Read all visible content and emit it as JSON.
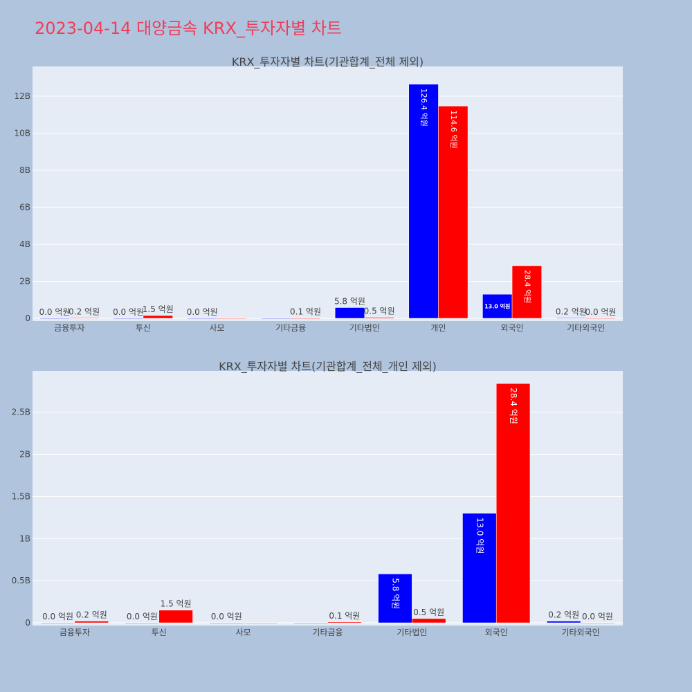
{
  "page": {
    "title": "2023-04-14 대양금속 KRX_투자자별 차트",
    "title_color": "#ef3d59",
    "background": "#b0c4de",
    "plot_background": "#e5ecf6",
    "grid_color": "#ffffff",
    "text_color": "#444444",
    "bar_colors": [
      "#0000ff",
      "#ff0000"
    ]
  },
  "chart_data": [
    {
      "type": "bar",
      "title": "KRX_투자자별 차트(기관합계_전체 제외)",
      "categories": [
        "금융투자",
        "투신",
        "사모",
        "기타금융",
        "기타법인",
        "개인",
        "외국인",
        "기타외국인"
      ],
      "series": [
        {
          "values": [
            0.0,
            0.0,
            0.0,
            0.0,
            580000000.0,
            12640000000.0,
            1300000000.0,
            20000000.0
          ],
          "labels": [
            "0.0 억원",
            "0.0 억원",
            "0.0 억원",
            "",
            "5.8 억원",
            "126.4 억원",
            "13.0 억원",
            "0.2 억원"
          ]
        },
        {
          "values": [
            20000000.0,
            150000000.0,
            0.0,
            10000000.0,
            50000000.0,
            11460000000.0,
            2840000000.0,
            0.0
          ],
          "labels": [
            "0.2 억원",
            "1.5 억원",
            "",
            "0.1 억원",
            "0.5 억원",
            "114.6 억원",
            "28.4 억원",
            "0.0 억원"
          ]
        }
      ],
      "ylim": [
        0,
        13600000000.0
      ],
      "yticks": [
        0,
        2000000000.0,
        4000000000.0,
        6000000000.0,
        8000000000.0,
        10000000000.0,
        12000000000.0
      ],
      "yticklabels": [
        "0",
        "2B",
        "4B",
        "6B",
        "8B",
        "10B",
        "12B"
      ],
      "grid": true
    },
    {
      "type": "bar",
      "title": "KRX_투자자별 차트(기관합계_전체_개인 제외)",
      "categories": [
        "금융투자",
        "투신",
        "사모",
        "기타금융",
        "기타법인",
        "외국인",
        "기타외국인"
      ],
      "series": [
        {
          "values": [
            0.0,
            0.0,
            0.0,
            0.0,
            580000000.0,
            1300000000.0,
            20000000.0
          ],
          "labels": [
            "0.0 억원",
            "0.0 억원",
            "0.0 억원",
            "",
            "5.8 억원",
            "13.0 억원",
            "0.2 억원"
          ]
        },
        {
          "values": [
            20000000.0,
            150000000.0,
            0.0,
            10000000.0,
            50000000.0,
            2840000000.0,
            0.0
          ],
          "labels": [
            "0.2 억원",
            "1.5 억원",
            "",
            "0.1 억원",
            "0.5 억원",
            "28.4 억원",
            "0.0 억원"
          ]
        }
      ],
      "ylim": [
        0,
        2990000000.0
      ],
      "yticks": [
        0,
        500000000.0,
        1000000000.0,
        1500000000.0,
        2000000000.0,
        2500000000.0
      ],
      "yticklabels": [
        "0",
        "0.5B",
        "1B",
        "1.5B",
        "2B",
        "2.5B"
      ],
      "grid": true
    }
  ]
}
